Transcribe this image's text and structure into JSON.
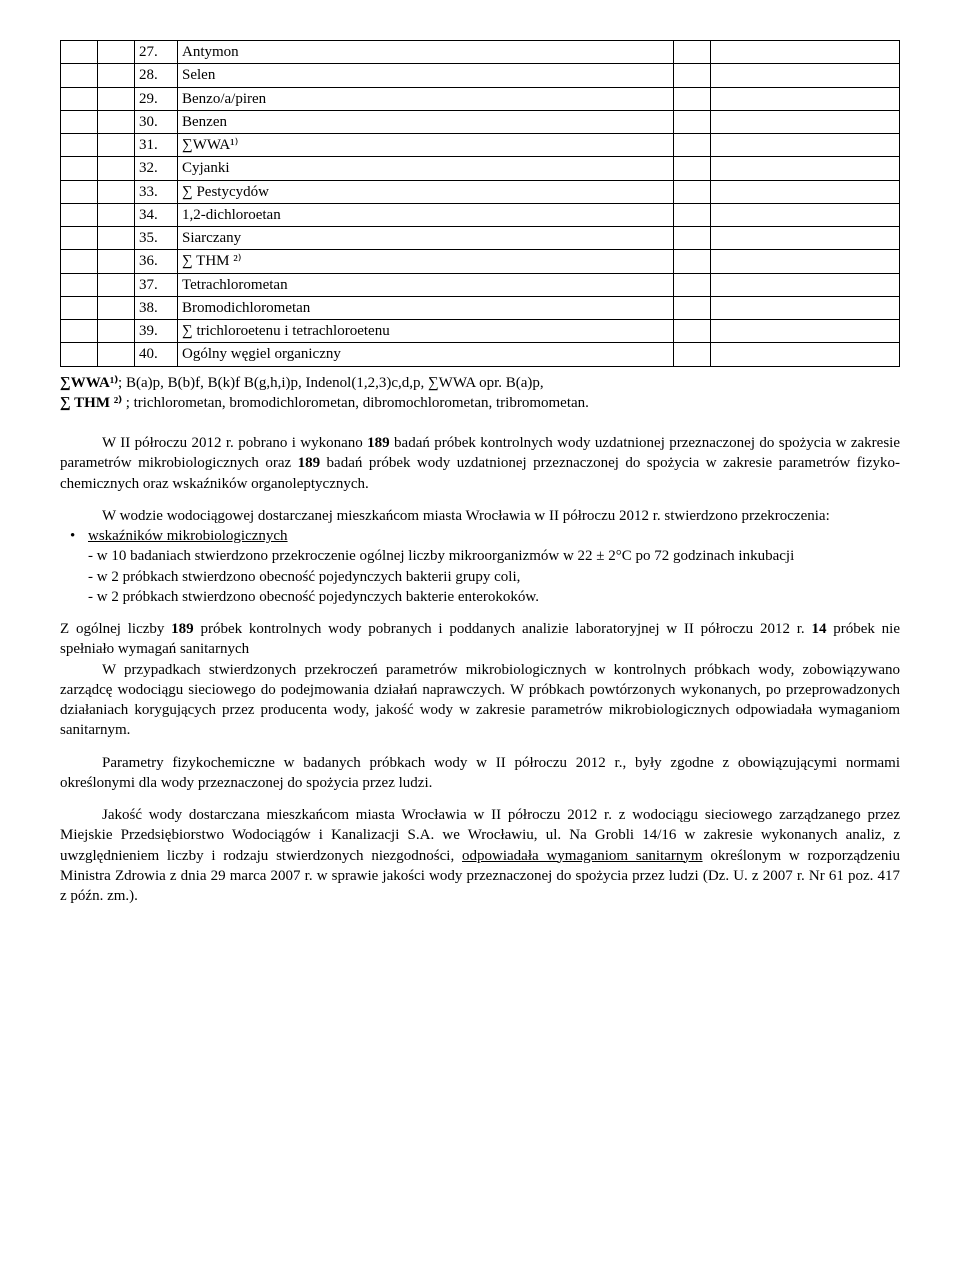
{
  "table": {
    "rows": [
      {
        "num": "27.",
        "name": "Antymon"
      },
      {
        "num": "28.",
        "name": "Selen"
      },
      {
        "num": "29.",
        "name": "Benzo/a/piren"
      },
      {
        "num": "30.",
        "name": "Benzen"
      },
      {
        "num": "31.",
        "name": "∑WWA¹⁾"
      },
      {
        "num": "32.",
        "name": "Cyjanki"
      },
      {
        "num": "33.",
        "name": "∑ Pestycydów"
      },
      {
        "num": "34.",
        "name": "1,2-dichloroetan"
      },
      {
        "num": "35.",
        "name": "Siarczany"
      },
      {
        "num": "36.",
        "name": "∑ THM ²⁾"
      },
      {
        "num": "37.",
        "name": "Tetrachlorometan"
      },
      {
        "num": "38.",
        "name": "Bromodichlorometan"
      },
      {
        "num": "39.",
        "name": "∑ trichloroetenu i tetrachloroetenu"
      },
      {
        "num": "40.",
        "name": "Ogólny węgiel organiczny"
      }
    ]
  },
  "footnote": {
    "wwa_label": "∑WWA¹⁾",
    "wwa_text": ";   B(a)p, B(b)f, B(k)f B(g,h,i)p, Indenol(1,2,3)c,d,p, ∑WWA opr. B(a)p,",
    "thm_label": "∑ THM ²⁾",
    "thm_text": " ; trichlorometan, bromodichlorometan, dibromochlorometan, tribromometan."
  },
  "p1": {
    "lead": "W II półroczu 2012 r. pobrano i wykonano ",
    "b1": "189",
    "mid1": " badań próbek kontrolnych wody uzdatnionej przeznaczonej do spożycia w zakresie parametrów mikrobiologicznych  oraz ",
    "b2": "189",
    "mid2": " badań próbek wody uzdatnionej przeznaczonej do spożycia w zakresie parametrów fizyko-chemicznych oraz wskaźników organoleptycznych."
  },
  "p2": {
    "line1": "W wodzie wodociągowej dostarczanej mieszkańcom miasta Wrocławia w II półroczu 2012 r. stwierdzono przekroczenia:"
  },
  "bullet1": {
    "label_prefix": " ",
    "label_underline": "wskaźników mikrobiologicznych",
    "s1": "- w 10 badaniach stwierdzono przekroczenie ogólnej liczby mikroorganizmów w 22 ± 2°C po 72 godzinach inkubacji",
    "s2": "- w 2 próbkach stwierdzono obecność pojedynczych bakterii grupy coli,",
    "s3": "- w 2 próbkach stwierdzono obecność pojedynczych bakterie enterokoków."
  },
  "p3": {
    "lead": "Z ogólnej liczby ",
    "b1": "189",
    "mid1": " próbek kontrolnych wody pobranych i poddanych analizie laboratoryjnej w II półroczu 2012 r. ",
    "b2": "14",
    "mid2": " próbek nie spełniało wymagań sanitarnych"
  },
  "p4": "W przypadkach stwierdzonych przekroczeń parametrów mikrobiologicznych w kontrolnych próbkach wody, zobowiązywano zarządcę wodociągu sieciowego do podejmowania działań naprawczych. W próbkach powtórzonych wykonanych, po przeprowadzonych działaniach korygujących przez producenta wody, jakość wody w zakresie parametrów mikrobiologicznych odpowiadała wymaganiom sanitarnym.",
  "p5": "Parametry fizykochemiczne w badanych próbkach wody w II półroczu 2012 r., były zgodne z obowiązującymi normami określonymi dla wody przeznaczonej do spożycia przez ludzi.",
  "p6": {
    "pre": "Jakość wody dostarczana mieszkańcom miasta Wrocławia w II półroczu 2012 r. z wodociągu sieciowego zarządzanego przez Miejskie Przedsiębiorstwo Wodociągów i Kanalizacji S.A. we Wrocławiu, ul. Na Grobli 14/16 w zakresie wykonanych analiz, z uwzględnieniem liczby i rodzaju stwierdzonych niezgodności, ",
    "u": "odpowiadała wymaganiom sanitarnym",
    "post": " określonym w rozporządzeniu Ministra Zdrowia z dnia 29 marca 2007 r. w sprawie jakości wody przeznaczonej do spożycia przez ludzi (Dz. U. z 2007 r. Nr 61 poz. 417 z późn. zm.)."
  }
}
